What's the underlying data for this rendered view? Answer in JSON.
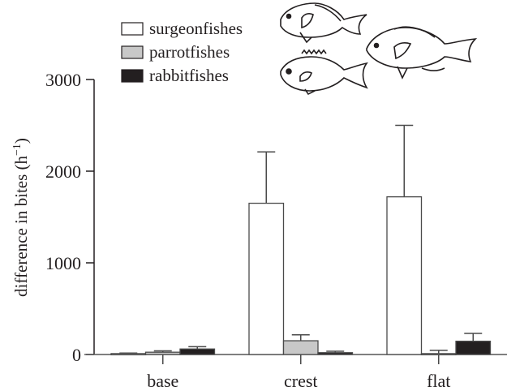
{
  "chart_data": {
    "type": "bar",
    "title": "",
    "xlabel": "",
    "ylabel": "difference in bites (h−1)",
    "ylabel_main": "difference in bites (h",
    "ylabel_sup": "−1",
    "ylabel_close": ")",
    "ylim": [
      0,
      3000
    ],
    "yticks": [
      0,
      1000,
      2000,
      3000
    ],
    "ytick_labels": [
      "0",
      "1000",
      "2000",
      "3000"
    ],
    "grid": false,
    "legend_position": "top-left",
    "categories": [
      "base",
      "crest",
      "flat"
    ],
    "series": [
      {
        "name": "surgeonfishes",
        "color": "#ffffff",
        "values": [
          10,
          1650,
          1720
        ],
        "error_upper": [
          15,
          2210,
          2500
        ]
      },
      {
        "name": "parrotfishes",
        "color": "#c8c8c8",
        "values": [
          25,
          150,
          10
        ],
        "error_upper": [
          40,
          215,
          45
        ]
      },
      {
        "name": "rabbitfishes",
        "color": "#231f20",
        "values": [
          60,
          20,
          145
        ],
        "error_upper": [
          85,
          35,
          230
        ]
      }
    ],
    "annotations": [
      "fish illustrations: surgeonfish, parrotfish, rabbitfish"
    ]
  },
  "legend": {
    "items": [
      {
        "label": "surgeonfishes",
        "color": "#ffffff"
      },
      {
        "label": "parrotfishes",
        "color": "#c8c8c8"
      },
      {
        "label": "rabbitfishes",
        "color": "#231f20"
      }
    ]
  }
}
